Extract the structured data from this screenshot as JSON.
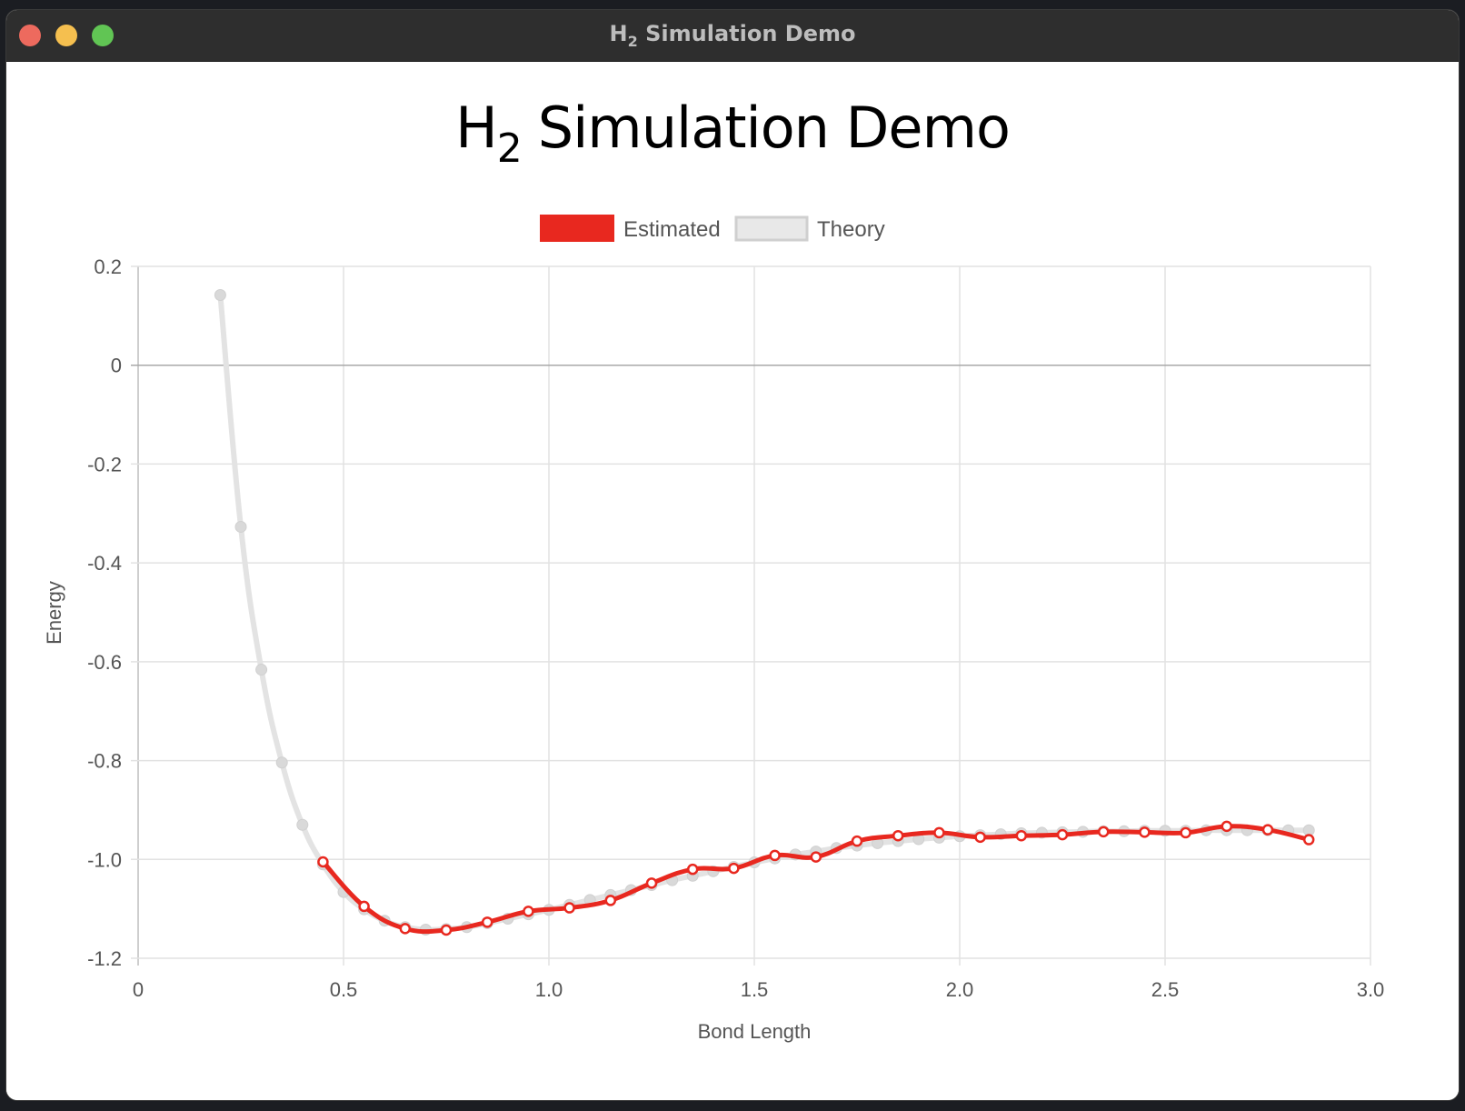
{
  "window": {
    "title_main": "H",
    "title_sub": "2",
    "title_rest": "Simulation Demo"
  },
  "heading": {
    "main": "H",
    "sub": "2",
    "rest": "Simulation Demo"
  },
  "chart_data": {
    "type": "line",
    "xlabel": "Bond Length",
    "ylabel": "Energy",
    "xlim": [
      0,
      3.0
    ],
    "ylim": [
      -1.2,
      0.2
    ],
    "x_ticks": [
      "0",
      "0.5",
      "1.0",
      "1.5",
      "2.0",
      "2.5",
      "3.0"
    ],
    "y_ticks": [
      "0.2",
      "0",
      "-0.2",
      "-0.4",
      "-0.6",
      "-0.8",
      "-1.0",
      "-1.2"
    ],
    "grid": true,
    "legend_position": "top-center",
    "series": [
      {
        "name": "Estimated",
        "color": "#e8281f",
        "x": [
          0.45,
          0.55,
          0.65,
          0.75,
          0.85,
          0.95,
          1.05,
          1.15,
          1.25,
          1.35,
          1.45,
          1.55,
          1.65,
          1.75,
          1.85,
          1.95,
          2.05,
          2.15,
          2.25,
          2.35,
          2.45,
          2.55,
          2.65,
          2.75,
          2.85
        ],
        "y": [
          -1.005,
          -1.095,
          -1.14,
          -1.143,
          -1.127,
          -1.105,
          -1.098,
          -1.083,
          -1.048,
          -1.02,
          -1.018,
          -0.992,
          -0.995,
          -0.963,
          -0.952,
          -0.946,
          -0.955,
          -0.952,
          -0.95,
          -0.944,
          -0.945,
          -0.946,
          -0.933,
          -0.94,
          -0.96
        ]
      },
      {
        "name": "Theory",
        "color": "#e0e0e0",
        "x": [
          0.2,
          0.25,
          0.3,
          0.35,
          0.4,
          0.45,
          0.5,
          0.55,
          0.6,
          0.65,
          0.7,
          0.75,
          0.8,
          0.85,
          0.9,
          0.95,
          1.0,
          1.05,
          1.1,
          1.15,
          1.2,
          1.25,
          1.3,
          1.35,
          1.4,
          1.45,
          1.5,
          1.55,
          1.6,
          1.65,
          1.7,
          1.75,
          1.8,
          1.85,
          1.9,
          1.95,
          2.0,
          2.05,
          2.1,
          2.15,
          2.2,
          2.25,
          2.3,
          2.35,
          2.4,
          2.45,
          2.5,
          2.55,
          2.6,
          2.65,
          2.7,
          2.75,
          2.8,
          2.85
        ],
        "y": [
          0.142,
          -0.327,
          -0.616,
          -0.804,
          -0.93,
          -1.01,
          -1.066,
          -1.101,
          -1.124,
          -1.137,
          -1.142,
          -1.141,
          -1.137,
          -1.129,
          -1.12,
          -1.111,
          -1.102,
          -1.092,
          -1.082,
          -1.072,
          -1.062,
          -1.052,
          -1.042,
          -1.033,
          -1.024,
          -1.015,
          -1.006,
          -0.998,
          -0.99,
          -0.984,
          -0.977,
          -0.972,
          -0.967,
          -0.963,
          -0.959,
          -0.956,
          -0.953,
          -0.951,
          -0.949,
          -0.947,
          -0.946,
          -0.945,
          -0.944,
          -0.943,
          -0.943,
          -0.942,
          -0.942,
          -0.942,
          -0.941,
          -0.941,
          -0.941,
          -0.941,
          -0.941,
          -0.941
        ]
      }
    ]
  }
}
